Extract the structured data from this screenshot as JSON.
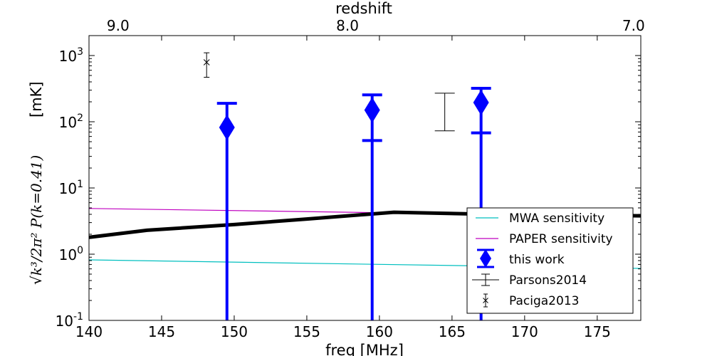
{
  "chart_data": {
    "type": "scatter",
    "xlabel": "freq [MHz]",
    "top_xlabel": "redshift",
    "ylabel_math": "√k³/2π² P(k=0.41)",
    "ylabel_unit": "[mK]",
    "xlim": [
      140,
      178
    ],
    "ylim": [
      0.1,
      2000
    ],
    "yscale": "log",
    "x_ticks": [
      {
        "value": 140,
        "label": "140"
      },
      {
        "value": 145,
        "label": "145"
      },
      {
        "value": 150,
        "label": "150"
      },
      {
        "value": 155,
        "label": "155"
      },
      {
        "value": 160,
        "label": "160"
      },
      {
        "value": 165,
        "label": "165"
      },
      {
        "value": 170,
        "label": "170"
      },
      {
        "value": 175,
        "label": "175"
      }
    ],
    "top_ticks": [
      {
        "freq": 142.0,
        "label": "9.0"
      },
      {
        "freq": 157.8,
        "label": "8.0"
      },
      {
        "freq": 177.5,
        "label": "7.0"
      }
    ],
    "y_ticks": [
      {
        "value": 0.1,
        "base": "10",
        "exp": "-1"
      },
      {
        "value": 1,
        "base": "10",
        "exp": "0"
      },
      {
        "value": 10,
        "base": "10",
        "exp": "1"
      },
      {
        "value": 100,
        "base": "10",
        "exp": "2"
      },
      {
        "value": 1000,
        "base": "10",
        "exp": "3"
      }
    ],
    "lines": [
      {
        "name": "MWA sensitivity",
        "color": "#00bfbf",
        "points": [
          [
            140,
            0.82
          ],
          [
            178,
            0.61
          ]
        ]
      },
      {
        "name": "PAPER sensitivity",
        "color": "#bf00bf",
        "points": [
          [
            140,
            4.9
          ],
          [
            161,
            4.2
          ],
          [
            178,
            3.7
          ]
        ]
      },
      {
        "name": "",
        "color": "#000000",
        "points": [
          [
            140,
            1.8
          ],
          [
            144,
            2.3
          ],
          [
            150,
            2.8
          ],
          [
            155,
            3.4
          ],
          [
            161,
            4.3
          ],
          [
            170,
            3.9
          ],
          [
            178,
            3.8
          ]
        ]
      }
    ],
    "this_work": {
      "name": "this work",
      "color": "#0000ff",
      "points": [
        {
          "x": 149.5,
          "y": 82,
          "ylow": 0.1,
          "yhigh": 190
        },
        {
          "x": 159.5,
          "y": 150,
          "ylow": 52,
          "yhigh": 255
        },
        {
          "x": 167.0,
          "y": 195,
          "ylow": 68,
          "yhigh": 320
        }
      ]
    },
    "parsons2014": {
      "name": "Parsons2014",
      "color": "#000000",
      "x": 164.5,
      "ylow": 73,
      "yhigh": 270
    },
    "paciga2013": {
      "name": "Paciga2013",
      "color": "#000000",
      "x": 148.1,
      "y": 790,
      "ylow": 470,
      "yhigh": 1100
    },
    "legend": {
      "position": "lower-right",
      "entries": [
        "MWA sensitivity",
        "PAPER sensitivity",
        "this work",
        "Parsons2014",
        "Paciga2013"
      ]
    }
  }
}
